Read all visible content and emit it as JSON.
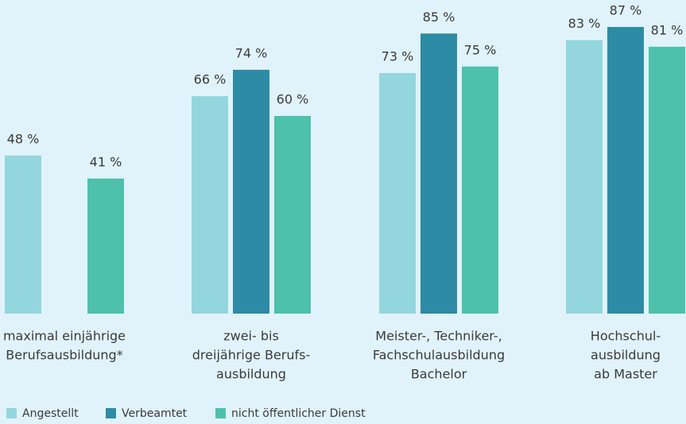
{
  "chart_data": {
    "type": "bar",
    "categories": [
      [
        "maximal einjährige",
        "Berufsausbildung*"
      ],
      [
        "zwei- bis",
        "dreijährige Berufs-",
        "ausbildung"
      ],
      [
        "Meister-, Techniker-,",
        "Fachschulausbildung",
        "Bachelor"
      ],
      [
        "Hochschul-",
        "ausbildung",
        "ab Master"
      ]
    ],
    "series": [
      {
        "name": "Angestellt",
        "color": "#93d6dd",
        "values": [
          48,
          66,
          73,
          83
        ],
        "value_labels": [
          "48 %",
          "66 %",
          "73 %",
          "83 %"
        ]
      },
      {
        "name": "Verbeamtet",
        "color": "#2e8ba5",
        "values": [
          null,
          74,
          85,
          87
        ],
        "value_labels": [
          null,
          "74 %",
          "85 %",
          "87 %"
        ]
      },
      {
        "name": "nicht öffentlicher Dienst",
        "color": "#4dc1aa",
        "values": [
          41,
          60,
          75,
          81
        ],
        "value_labels": [
          "41 %",
          "60 %",
          "75 %",
          "81 %"
        ]
      }
    ],
    "ylim": [
      0,
      90
    ],
    "legend": "bottom-left"
  }
}
